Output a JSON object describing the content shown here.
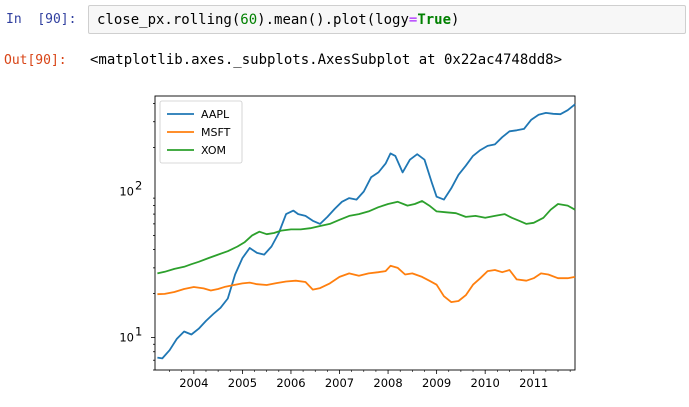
{
  "input_cell": {
    "prompt_label": "In",
    "prompt_number": "[90]:",
    "code_parts": {
      "pre": "close_px.rolling(",
      "num": "60",
      "mid": ").mean().plot(logy",
      "eq": "=",
      "kw": "True",
      "post": ")"
    }
  },
  "output_cell": {
    "prompt": "Out[90]:",
    "repr_text": "<matplotlib.axes._subplots.AxesSubplot at 0x22ac4748dd8>"
  },
  "chart_data": {
    "type": "line",
    "yscale": "log",
    "ylim": [
      6.0,
      450.0
    ],
    "xlim": [
      2003.2,
      2011.85
    ],
    "y_ticks": [
      {
        "value": 10,
        "label": "10",
        "exp": "1"
      },
      {
        "value": 100,
        "label": "10",
        "exp": "2"
      }
    ],
    "x_ticks": [
      "2004",
      "2005",
      "2006",
      "2007",
      "2008",
      "2009",
      "2010",
      "2011"
    ],
    "legend_position": "upper-left",
    "series": [
      {
        "name": "AAPL",
        "color": "#1f77b4",
        "x": [
          2003.25,
          2003.35,
          2003.5,
          2003.65,
          2003.8,
          2003.95,
          2004.1,
          2004.25,
          2004.4,
          2004.55,
          2004.7,
          2004.85,
          2005.0,
          2005.15,
          2005.3,
          2005.45,
          2005.6,
          2005.75,
          2005.9,
          2006.05,
          2006.15,
          2006.3,
          2006.45,
          2006.6,
          2006.75,
          2006.9,
          2007.05,
          2007.2,
          2007.35,
          2007.5,
          2007.65,
          2007.8,
          2007.95,
          2008.05,
          2008.15,
          2008.3,
          2008.45,
          2008.6,
          2008.75,
          2008.9,
          2009.0,
          2009.15,
          2009.3,
          2009.45,
          2009.6,
          2009.75,
          2009.9,
          2010.05,
          2010.2,
          2010.35,
          2010.5,
          2010.65,
          2010.8,
          2010.95,
          2011.1,
          2011.25,
          2011.4,
          2011.55,
          2011.7,
          2011.85
        ],
        "values": [
          7.3,
          7.2,
          8.2,
          9.8,
          11.0,
          10.5,
          11.5,
          13.0,
          14.5,
          16.0,
          18.5,
          27.0,
          35.0,
          41.0,
          38.0,
          37.0,
          42.0,
          52.0,
          70.0,
          74.0,
          70.0,
          68.0,
          63.0,
          60.0,
          67.0,
          76.0,
          85.0,
          90.0,
          88.0,
          100.0,
          125.0,
          135.0,
          155.0,
          182.0,
          175.0,
          135.0,
          165.0,
          180.0,
          165.0,
          115.0,
          92.0,
          88.0,
          105.0,
          130.0,
          150.0,
          175.0,
          192.0,
          205.0,
          210.0,
          235.0,
          258.0,
          262.0,
          268.0,
          310.0,
          335.0,
          345.0,
          340.0,
          338.0,
          360.0,
          395.0
        ]
      },
      {
        "name": "MSFT",
        "color": "#ff7f0e",
        "x": [
          2003.25,
          2003.4,
          2003.6,
          2003.8,
          2004.0,
          2004.2,
          2004.35,
          2004.5,
          2004.65,
          2004.8,
          2005.0,
          2005.15,
          2005.3,
          2005.5,
          2005.7,
          2005.9,
          2006.1,
          2006.3,
          2006.45,
          2006.6,
          2006.8,
          2007.0,
          2007.2,
          2007.4,
          2007.6,
          2007.8,
          2007.95,
          2008.05,
          2008.2,
          2008.35,
          2008.5,
          2008.7,
          2008.85,
          2009.0,
          2009.15,
          2009.3,
          2009.45,
          2009.6,
          2009.75,
          2009.9,
          2010.05,
          2010.2,
          2010.35,
          2010.5,
          2010.65,
          2010.85,
          2011.0,
          2011.15,
          2011.3,
          2011.5,
          2011.7,
          2011.85
        ],
        "values": [
          19.8,
          19.9,
          20.5,
          21.5,
          22.2,
          21.7,
          21.0,
          21.5,
          22.3,
          22.8,
          23.5,
          23.8,
          23.2,
          22.9,
          23.6,
          24.2,
          24.5,
          24.0,
          21.3,
          21.8,
          23.5,
          26.0,
          27.5,
          26.5,
          27.5,
          28.0,
          28.5,
          31.0,
          30.0,
          27.0,
          27.5,
          26.0,
          24.5,
          23.0,
          19.2,
          17.5,
          17.8,
          19.5,
          23.0,
          25.5,
          28.5,
          29.0,
          28.0,
          29.0,
          25.0,
          24.5,
          25.5,
          27.5,
          27.0,
          25.5,
          25.5,
          26.0
        ]
      },
      {
        "name": "XOM",
        "color": "#2ca02c",
        "x": [
          2003.25,
          2003.4,
          2003.6,
          2003.8,
          2003.95,
          2004.1,
          2004.3,
          2004.5,
          2004.7,
          2004.9,
          2005.05,
          2005.2,
          2005.35,
          2005.5,
          2005.65,
          2005.8,
          2006.0,
          2006.2,
          2006.4,
          2006.6,
          2006.8,
          2007.0,
          2007.2,
          2007.4,
          2007.6,
          2007.8,
          2008.0,
          2008.2,
          2008.4,
          2008.55,
          2008.7,
          2008.85,
          2009.0,
          2009.2,
          2009.4,
          2009.6,
          2009.8,
          2010.0,
          2010.2,
          2010.4,
          2010.55,
          2010.7,
          2010.85,
          2011.0,
          2011.2,
          2011.35,
          2011.5,
          2011.7,
          2011.85
        ],
        "values": [
          27.5,
          28.2,
          29.5,
          30.5,
          31.8,
          33.0,
          35.0,
          37.0,
          39.0,
          42.0,
          45.0,
          50.0,
          53.0,
          51.0,
          52.0,
          54.0,
          55.0,
          55.0,
          56.0,
          58.0,
          60.0,
          64.0,
          68.0,
          70.0,
          73.0,
          78.0,
          82.0,
          85.0,
          80.0,
          82.0,
          86.0,
          80.0,
          73.0,
          72.0,
          71.0,
          67.0,
          68.0,
          66.0,
          68.0,
          70.0,
          66.0,
          63.0,
          60.0,
          61.0,
          66.0,
          75.0,
          82.0,
          80.0,
          75.0
        ]
      }
    ]
  }
}
